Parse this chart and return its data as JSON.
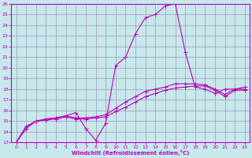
{
  "xlabel": "Windchill (Refroidissement éolien,°C)",
  "xlim": [
    -0.5,
    23.5
  ],
  "ylim": [
    13,
    26
  ],
  "xticks": [
    0,
    1,
    2,
    3,
    4,
    5,
    6,
    7,
    8,
    9,
    10,
    11,
    12,
    13,
    14,
    15,
    16,
    17,
    18,
    19,
    20,
    21,
    22,
    23
  ],
  "yticks": [
    13,
    14,
    15,
    16,
    17,
    18,
    19,
    20,
    21,
    22,
    23,
    24,
    25,
    26
  ],
  "bg_color": "#c8e8ec",
  "grid_color": "#9999bb",
  "line_color": "#bb00bb",
  "line1_x": [
    0,
    1,
    2,
    3,
    4,
    5,
    6,
    7,
    8,
    9,
    10,
    11,
    12,
    13,
    14,
    15,
    16,
    17,
    18,
    19,
    20,
    21,
    22,
    23
  ],
  "line1_y": [
    13.0,
    14.5,
    15.0,
    15.2,
    15.3,
    15.5,
    15.8,
    14.3,
    13.2,
    14.8,
    20.2,
    21.0,
    23.2,
    24.7,
    25.0,
    25.8,
    26.0,
    21.5,
    18.2,
    18.0,
    17.6,
    18.0,
    18.0,
    18.0
  ],
  "line2_x": [
    0,
    1,
    2,
    3,
    4,
    5,
    6,
    7,
    8,
    9,
    10,
    11,
    12,
    13,
    14,
    15,
    16,
    17,
    18,
    19,
    20,
    21,
    22,
    23
  ],
  "line2_y": [
    13.0,
    14.5,
    15.0,
    15.2,
    15.3,
    15.5,
    15.3,
    15.3,
    15.4,
    15.6,
    16.2,
    16.8,
    17.3,
    17.8,
    18.0,
    18.2,
    18.5,
    18.5,
    18.5,
    18.4,
    18.0,
    17.5,
    18.0,
    18.2
  ],
  "line3_x": [
    0,
    1,
    2,
    3,
    4,
    5,
    6,
    7,
    8,
    9,
    10,
    11,
    12,
    13,
    14,
    15,
    16,
    17,
    18,
    19,
    20,
    21,
    22,
    23
  ],
  "line3_y": [
    13.0,
    14.3,
    15.0,
    15.1,
    15.2,
    15.4,
    15.2,
    15.2,
    15.3,
    15.4,
    15.9,
    16.3,
    16.8,
    17.3,
    17.6,
    17.9,
    18.1,
    18.2,
    18.3,
    18.3,
    17.9,
    17.3,
    17.9,
    17.9
  ]
}
